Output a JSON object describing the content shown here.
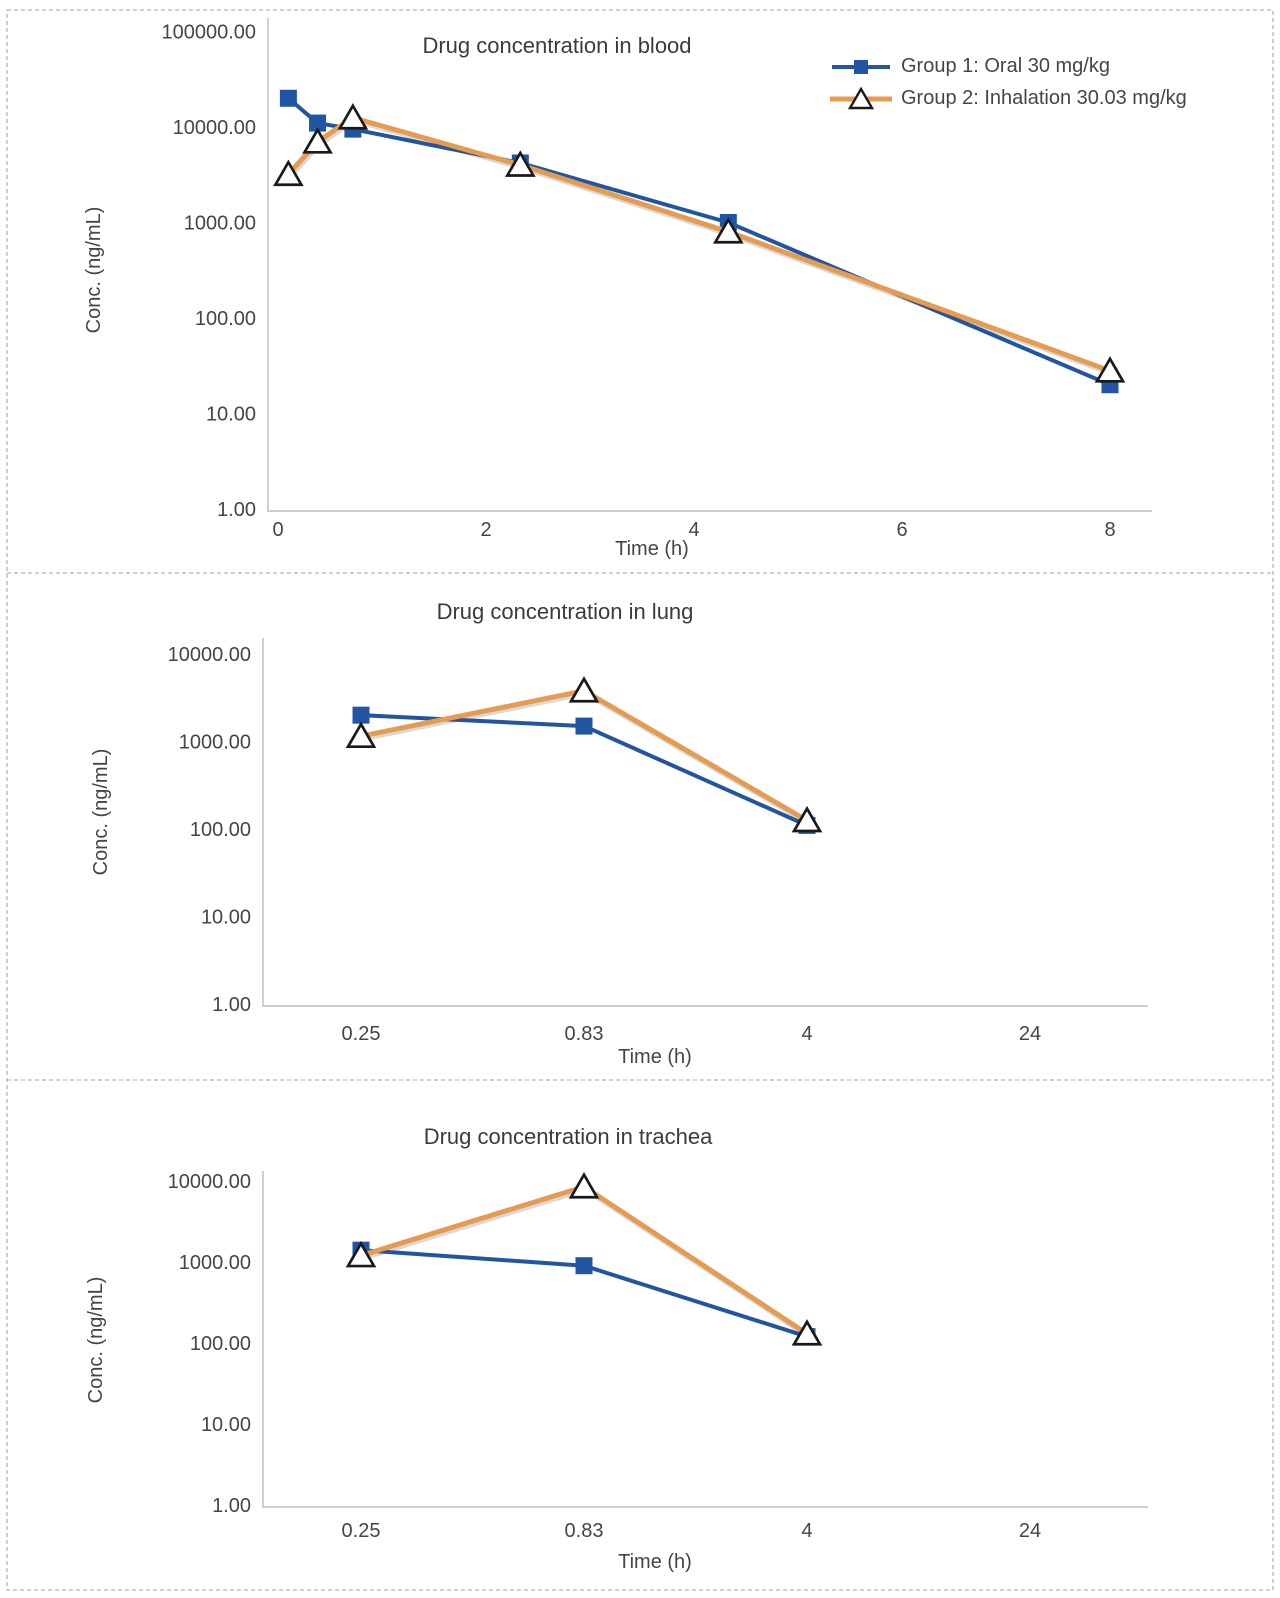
{
  "page": {
    "background": "#ffffff",
    "panel_border_color": "#b3b3b3"
  },
  "colors": {
    "group1": "#2155a4",
    "group2": "#e59b50",
    "marker_outline": "#1a1a1a",
    "axis_line": "#c8c8c8",
    "text": "#454545"
  },
  "legend": {
    "items": [
      {
        "label": "Group 1: Oral 30 mg/kg",
        "marker": "square"
      },
      {
        "label": "Group 2: Inhalation 30.03 mg/kg",
        "marker": "triangle"
      }
    ]
  },
  "chart_data": [
    {
      "id": "blood",
      "type": "line",
      "title": "Drug concentration in blood",
      "xlabel": "Time (h)",
      "ylabel": "Conc. (ng/mL)",
      "x_axis": {
        "scale": "linear",
        "ticks": [
          "0",
          "2",
          "4",
          "6",
          "8"
        ],
        "range": [
          0,
          8.4
        ]
      },
      "y_axis": {
        "scale": "log",
        "tick_labels": [
          "100000.00",
          "10000.00",
          "1000.00",
          "100.00",
          "10.00",
          "1.00"
        ],
        "range": [
          1,
          100000
        ]
      },
      "grid": false,
      "legend_position": "top-right",
      "series": [
        {
          "name": "Group 1: Oral 30 mg/kg",
          "marker": "square",
          "color_key": "group1",
          "points": [
            {
              "x": 0.1,
              "y": 20000
            },
            {
              "x": 0.38,
              "y": 11000
            },
            {
              "x": 0.72,
              "y": 9500
            },
            {
              "x": 2.33,
              "y": 4200
            },
            {
              "x": 4.33,
              "y": 1000
            },
            {
              "x": 8,
              "y": 20
            }
          ]
        },
        {
          "name": "Group 2: Inhalation 30.03 mg/kg",
          "marker": "triangle",
          "color_key": "group2",
          "points": [
            {
              "x": 0.1,
              "y": 3200
            },
            {
              "x": 0.38,
              "y": 7000
            },
            {
              "x": 0.72,
              "y": 12500
            },
            {
              "x": 2.33,
              "y": 4000
            },
            {
              "x": 4.33,
              "y": 800
            },
            {
              "x": 8,
              "y": 28
            }
          ]
        }
      ]
    },
    {
      "id": "lung",
      "type": "line",
      "title": "Drug concentration in lung",
      "xlabel": "Time (h)",
      "ylabel": "Conc. (ng/mL)",
      "x_axis": {
        "scale": "category",
        "categories": [
          "0.25",
          "0.83",
          "4",
          "24"
        ]
      },
      "y_axis": {
        "scale": "log",
        "tick_labels": [
          "10000.00",
          "1000.00",
          "100.00",
          "10.00",
          "1.00"
        ],
        "range": [
          1,
          10000
        ]
      },
      "grid": false,
      "series": [
        {
          "name": "Group 1: Oral 30 mg/kg",
          "marker": "square",
          "color_key": "group1",
          "points": [
            {
              "x": "0.25",
              "y": 2000
            },
            {
              "x": "0.83",
              "y": 1500
            },
            {
              "x": "4",
              "y": 110
            }
          ]
        },
        {
          "name": "Group 2: Inhalation 30.03 mg/kg",
          "marker": "triangle",
          "color_key": "group2",
          "points": [
            {
              "x": "0.25",
              "y": 1150
            },
            {
              "x": "0.83",
              "y": 3800
            },
            {
              "x": "4",
              "y": 125
            }
          ]
        }
      ]
    },
    {
      "id": "trachea",
      "type": "line",
      "title": "Drug concentration in trachea",
      "xlabel": "Time (h)",
      "ylabel": "Conc. (ng/mL)",
      "x_axis": {
        "scale": "category",
        "categories": [
          "0.25",
          "0.83",
          "4",
          "24"
        ]
      },
      "y_axis": {
        "scale": "log",
        "tick_labels": [
          "10000.00",
          "1000.00",
          "100.00",
          "10.00",
          "1.00"
        ],
        "range": [
          1,
          10000
        ]
      },
      "grid": false,
      "series": [
        {
          "name": "Group 1: Oral 30 mg/kg",
          "marker": "square",
          "color_key": "group1",
          "points": [
            {
              "x": "0.25",
              "y": 1400
            },
            {
              "x": "0.83",
              "y": 900
            },
            {
              "x": "4",
              "y": 120
            }
          ]
        },
        {
          "name": "Group 2: Inhalation 30.03 mg/kg",
          "marker": "triangle",
          "color_key": "group2",
          "points": [
            {
              "x": "0.25",
              "y": 1200
            },
            {
              "x": "0.83",
              "y": 8500
            },
            {
              "x": "4",
              "y": 130
            }
          ]
        }
      ]
    }
  ]
}
